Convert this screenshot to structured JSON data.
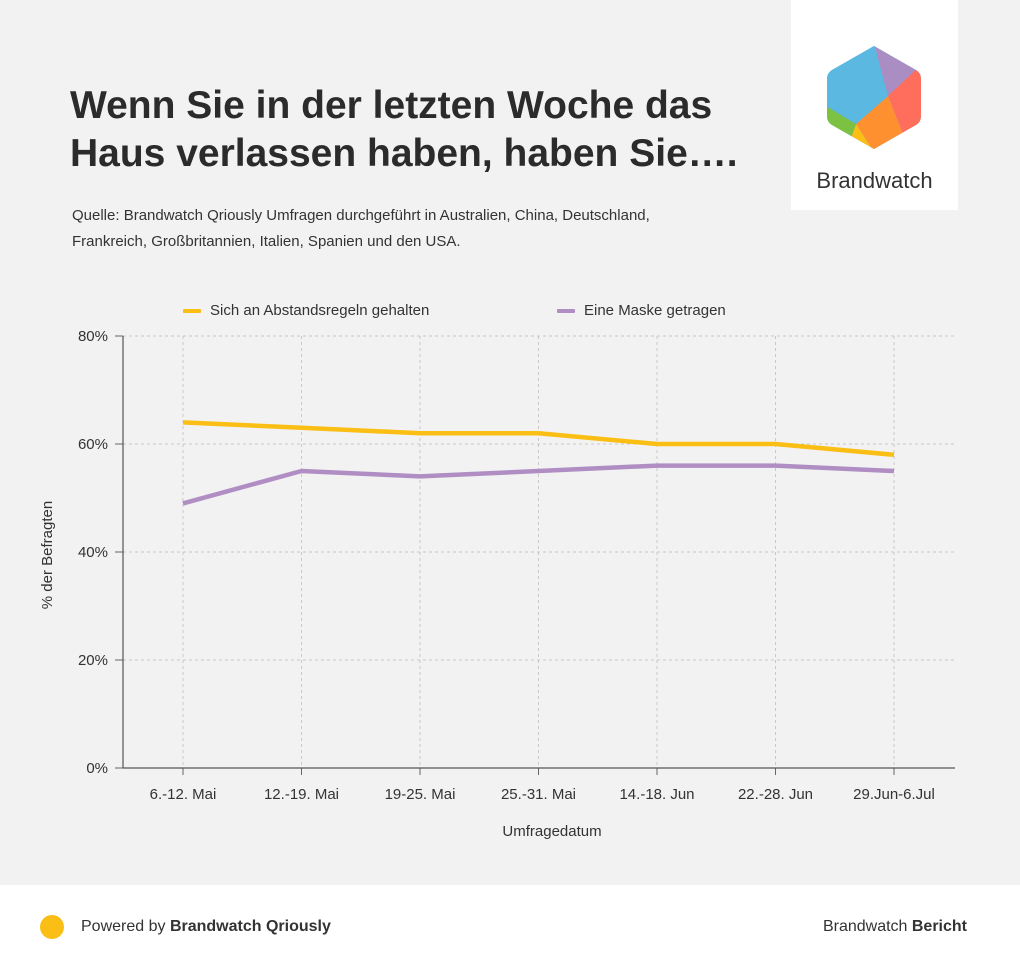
{
  "header": {
    "title": "Wenn Sie in der letzten Woche das Haus verlassen haben, haben Sie….",
    "source_text": "Quelle: Brandwatch Qriously Umfragen durchgeführt in Australien, China, Deutschland, Frankreich, Großbritannien, Italien, Spanien und den USA."
  },
  "logo": {
    "text": "Brandwatch"
  },
  "footer": {
    "powered_prefix": "Powered by ",
    "powered_brand": "Brandwatch Qriously",
    "report_prefix": "Brandwatch ",
    "report_bold": "Bericht"
  },
  "chart_data": {
    "type": "line",
    "title": "Wenn Sie in der letzten Woche das Haus verlassen haben, haben Sie….",
    "xlabel": "Umfragedatum",
    "ylabel": "% der Befragten",
    "categories": [
      "6.-12. Mai",
      "12.-19. Mai",
      "19-25. Mai",
      "25.-31. Mai",
      "14.-18. Jun",
      "22.-28. Jun",
      "29.Jun-6.Jul"
    ],
    "yticks": [
      "0%",
      "20%",
      "40%",
      "60%",
      "80%"
    ],
    "ylim": [
      0,
      80
    ],
    "grid": true,
    "legend_position": "top",
    "series": [
      {
        "name": "Sich an Abstandsregeln gehalten",
        "color": "#fbbe15",
        "values": [
          64,
          63,
          62,
          62,
          60,
          60,
          58
        ]
      },
      {
        "name": "Eine Maske getragen",
        "color": "#b08ec3",
        "values": [
          49,
          55,
          54,
          55,
          56,
          56,
          55
        ]
      }
    ]
  }
}
